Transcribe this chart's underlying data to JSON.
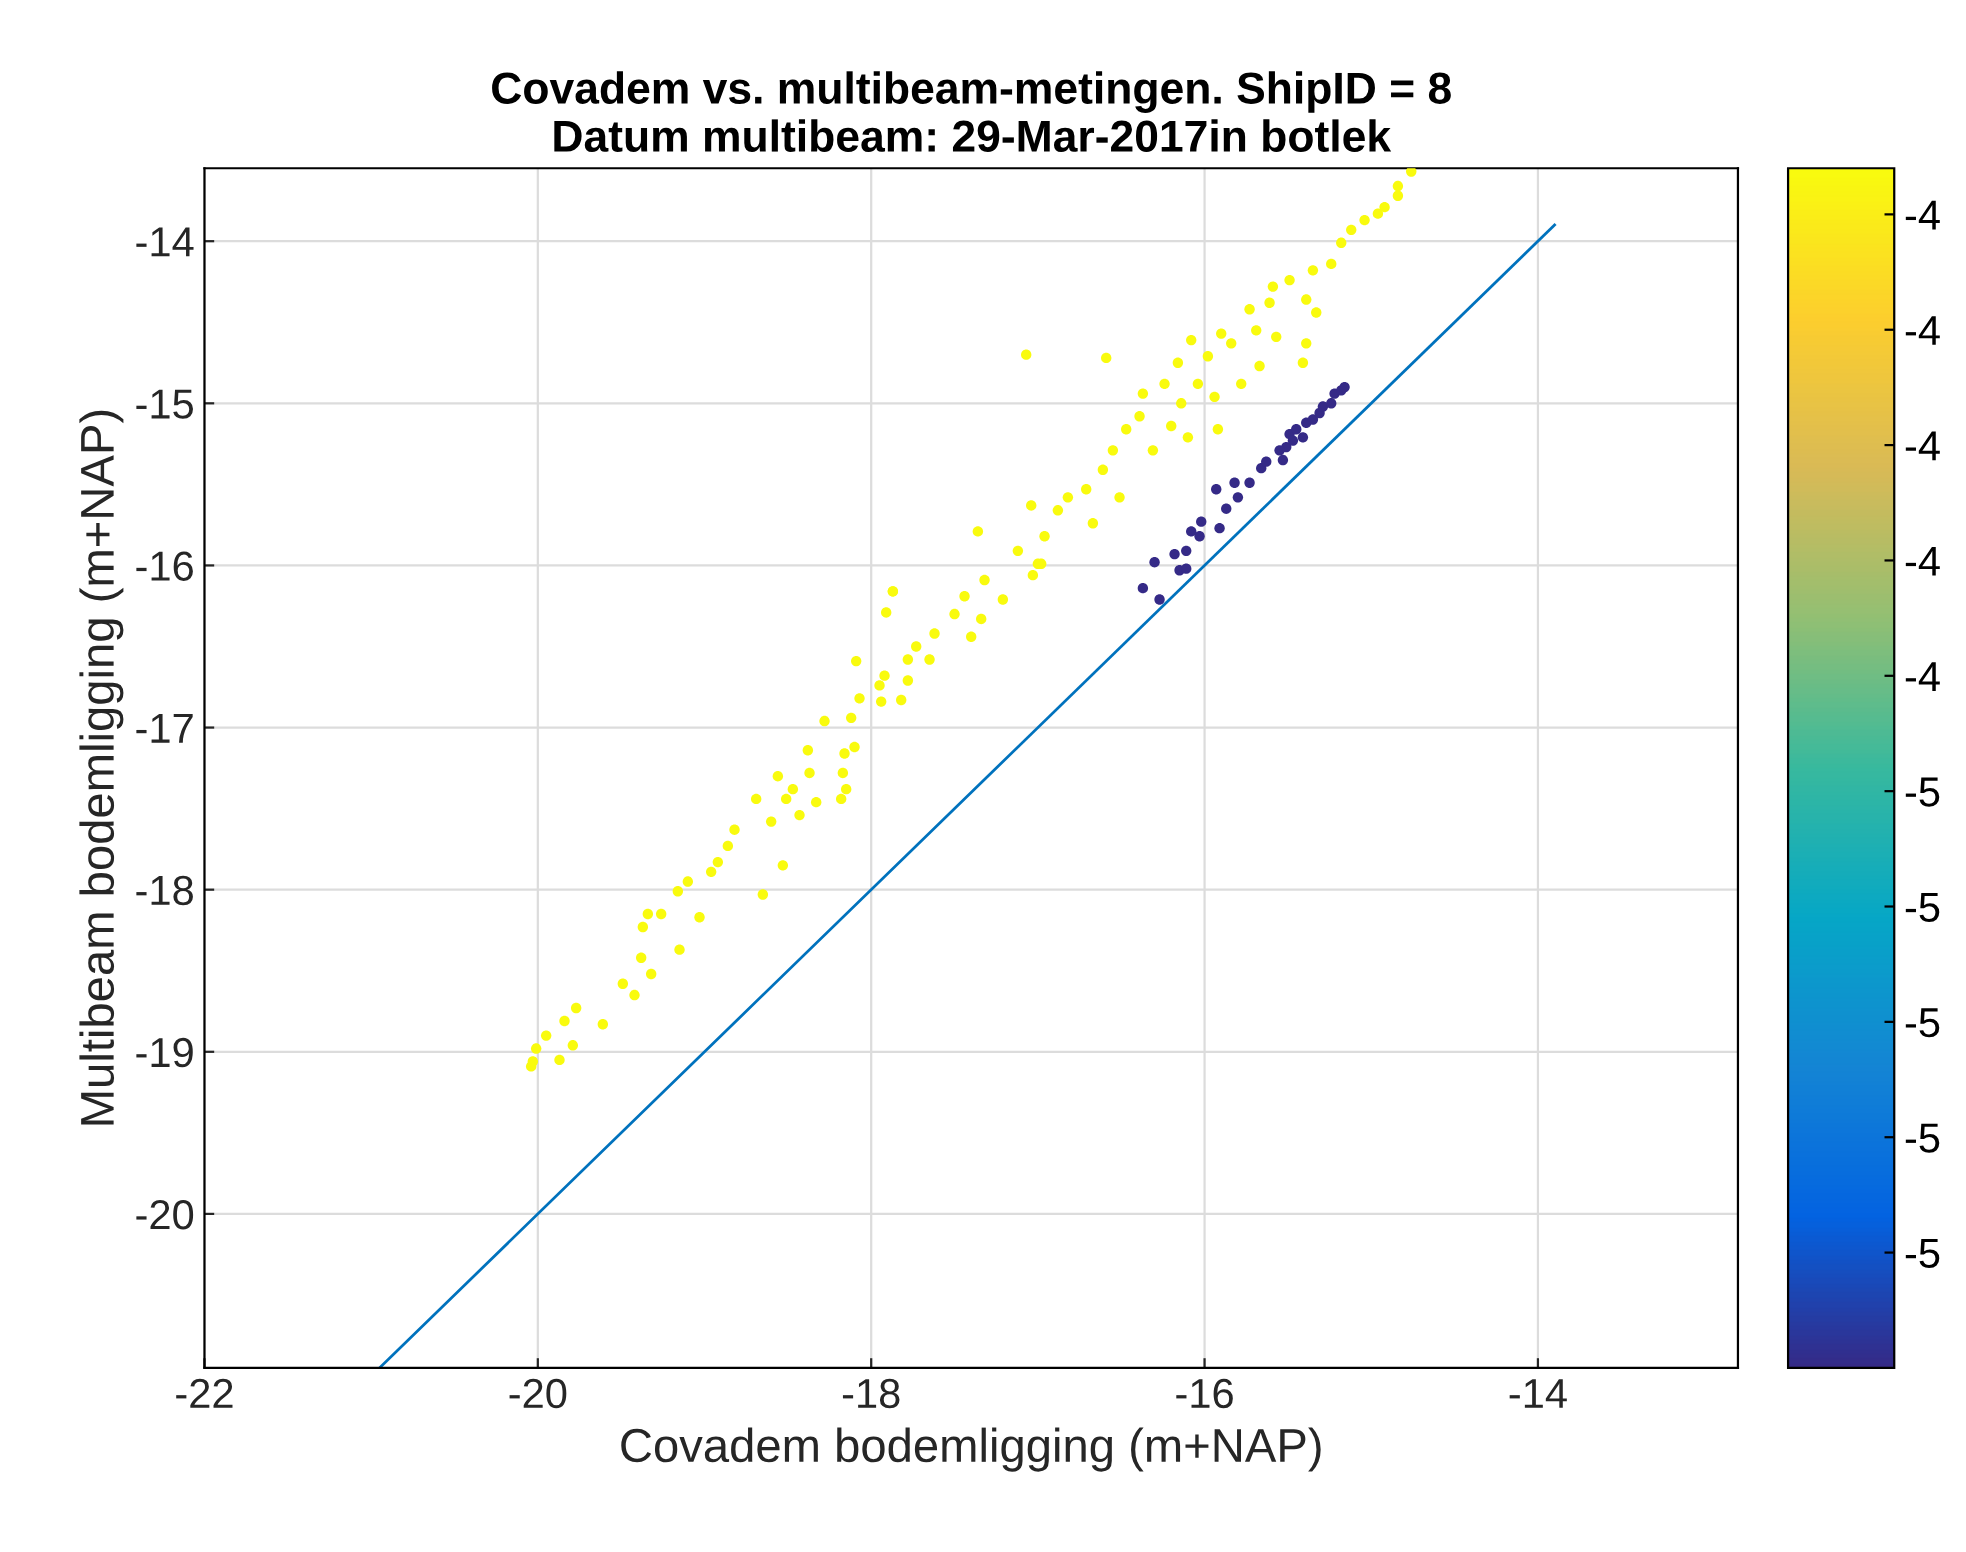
{
  "chart_data": {
    "type": "scatter",
    "title": "Covadem vs. multibeam-metingen. ShipID = 8\nDatum multibeam: 29-Mar-2017in botlek",
    "xlabel": "Covadem bodemligging (m+NAP)",
    "ylabel": "Multibeam bodemligging (m+NAP)",
    "xlim": [
      -22,
      -12.8
    ],
    "xticks": [
      -22,
      -20,
      -18,
      -16,
      -14
    ],
    "ylim": [
      -20.95,
      -13.55
    ],
    "yticks": [
      -20,
      -19,
      -18,
      -17,
      -16,
      -15,
      -14
    ],
    "clim": [
      -5.0,
      -3.96
    ],
    "cticks": [
      {
        "value": -4.0,
        "label": "-4"
      },
      {
        "value": -4.1,
        "label": "-4"
      },
      {
        "value": -4.2,
        "label": "-4"
      },
      {
        "value": -4.3,
        "label": "-4"
      },
      {
        "value": -4.4,
        "label": "-4"
      },
      {
        "value": -4.5,
        "label": "-5"
      },
      {
        "value": -4.6,
        "label": "-5"
      },
      {
        "value": -4.7,
        "label": "-5"
      },
      {
        "value": -4.8,
        "label": "-5"
      },
      {
        "value": -4.9,
        "label": "-5"
      }
    ],
    "grid": true,
    "marker": "circle",
    "series": [
      {
        "x": [
          -20.04,
          -20.03,
          -20.01,
          -19.95,
          -19.87,
          -19.84,
          -19.79,
          -19.77,
          -19.61,
          -19.49,
          -19.42,
          -19.38,
          -19.32,
          -19.37,
          -19.34,
          -19.26,
          -19.15,
          -19.16,
          -19.1,
          -19.03,
          -18.96,
          -18.92,
          -18.86,
          -18.82,
          -18.65,
          -18.69,
          -18.6,
          -18.53,
          -18.56,
          -18.51,
          -18.43,
          -18.47,
          -18.38,
          -18.37,
          -18.33,
          -18.28,
          -18.18,
          -18.17,
          -18.15,
          -18.16,
          -18.12,
          -18.09,
          -18.07,
          -18.1,
          -17.95,
          -17.94,
          -17.92,
          -17.91,
          -17.87,
          -17.82,
          -17.78,
          -17.78,
          -17.73,
          -17.65,
          -17.62,
          -17.5,
          -17.44,
          -17.4,
          -17.34,
          -17.32,
          -17.21,
          -17.03,
          -16.98,
          -17.36,
          -17.04,
          -17.12,
          -17.0,
          -16.96,
          -16.88,
          -16.82,
          -16.71,
          -16.67,
          -16.61,
          -16.55,
          -16.51,
          -16.47,
          -16.39,
          -16.37,
          -16.31,
          -16.24,
          -16.2,
          -16.16,
          -16.14,
          -16.1,
          -16.08,
          -16.04,
          -15.98,
          -15.94,
          -15.92,
          -15.9,
          -15.84,
          -15.78,
          -15.73,
          -15.69,
          -15.67,
          -15.61,
          -15.59,
          -15.57,
          -15.49,
          -15.41,
          -15.39,
          -15.39,
          -15.35,
          -15.33,
          -15.24,
          -15.18,
          -15.12,
          -15.04,
          -14.96,
          -14.92,
          -14.84,
          -14.84,
          -14.76,
          -17.07,
          -16.59,
          -17.87
        ],
        "values": [
          -19.09,
          -19.06,
          -18.98,
          -18.9,
          -19.05,
          -18.81,
          -18.96,
          -18.73,
          -18.83,
          -18.58,
          -18.65,
          -18.42,
          -18.52,
          -18.23,
          -18.15,
          -18.15,
          -18.37,
          -18.01,
          -17.95,
          -18.17,
          -17.89,
          -17.83,
          -17.73,
          -17.63,
          -18.03,
          -17.44,
          -17.58,
          -17.85,
          -17.3,
          -17.44,
          -17.54,
          -17.38,
          -17.14,
          -17.28,
          -17.46,
          -16.96,
          -17.44,
          -17.28,
          -17.38,
          -17.16,
          -16.94,
          -16.59,
          -16.82,
          -17.12,
          -16.74,
          -16.84,
          -16.68,
          -16.29,
          -16.16,
          -16.83,
          -16.71,
          -16.58,
          -16.5,
          -16.58,
          -16.42,
          -16.3,
          -16.19,
          -16.44,
          -16.33,
          -16.09,
          -16.21,
          -16.06,
          -15.99,
          -15.79,
          -15.63,
          -15.91,
          -15.99,
          -15.82,
          -15.66,
          -15.58,
          -15.53,
          -15.74,
          -15.41,
          -15.29,
          -15.58,
          -15.16,
          -15.08,
          -14.94,
          -15.29,
          -14.88,
          -15.14,
          -14.75,
          -15.0,
          -15.21,
          -14.61,
          -14.88,
          -14.71,
          -14.96,
          -15.16,
          -14.57,
          -14.63,
          -14.88,
          -14.42,
          -14.55,
          -14.77,
          -14.38,
          -14.28,
          -14.59,
          -14.24,
          -14.75,
          -14.63,
          -14.36,
          -14.18,
          -14.44,
          -14.14,
          -14.01,
          -13.93,
          -13.87,
          -13.83,
          -13.79,
          -13.72,
          -13.66,
          -13.57,
          -14.7,
          -14.72,
          -16.16
        ],
        "cvalues": [
          -3.96,
          -3.96,
          -3.96,
          -3.96,
          -3.96,
          -3.96,
          -3.96,
          -3.96,
          -3.96,
          -3.96,
          -3.96,
          -3.96,
          -3.96,
          -3.96,
          -3.96,
          -3.96,
          -3.96,
          -3.96,
          -3.96,
          -3.96,
          -3.96,
          -3.96,
          -3.96,
          -3.96,
          -3.96,
          -3.96,
          -3.96,
          -3.96,
          -3.96,
          -3.96,
          -3.96,
          -3.96,
          -3.96,
          -3.96,
          -3.96,
          -3.96,
          -3.96,
          -3.96,
          -3.96,
          -3.96,
          -3.96,
          -3.96,
          -3.96,
          -3.96,
          -3.96,
          -3.96,
          -3.96,
          -3.96,
          -3.96,
          -3.96,
          -3.96,
          -3.96,
          -3.96,
          -3.96,
          -3.96,
          -3.96,
          -3.96,
          -3.96,
          -3.96,
          -3.96,
          -3.96,
          -3.96,
          -3.96,
          -3.96,
          -3.96,
          -3.96,
          -3.96,
          -3.96,
          -3.96,
          -3.96,
          -3.96,
          -3.96,
          -3.96,
          -3.96,
          -3.96,
          -3.96,
          -3.96,
          -3.96,
          -3.96,
          -3.96,
          -3.96,
          -3.96,
          -3.96,
          -3.96,
          -3.96,
          -3.96,
          -3.96,
          -3.96,
          -3.96,
          -3.96,
          -3.96,
          -3.96,
          -3.96,
          -3.96,
          -3.96,
          -3.96,
          -3.96,
          -3.96,
          -3.96,
          -3.96,
          -3.96,
          -3.96,
          -3.96,
          -3.96,
          -3.96,
          -3.96,
          -3.96,
          -3.96,
          -3.96,
          -3.96,
          -3.96,
          -3.96,
          -3.96,
          -3.96,
          -3.96,
          -3.96
        ]
      },
      {
        "x": [
          -16.37,
          -16.27,
          -16.3,
          -16.15,
          -16.11,
          -16.18,
          -16.11,
          -16.08,
          -16.02,
          -16.03,
          -15.91,
          -15.93,
          -15.87,
          -15.82,
          -15.8,
          -15.73,
          -15.66,
          -15.63,
          -15.53,
          -15.51,
          -15.49,
          -15.45,
          -15.41,
          -15.39,
          -15.35,
          -15.31,
          -15.29,
          -15.24,
          -15.22,
          -15.18,
          -15.16,
          -15.55,
          -15.47
        ],
        "values": [
          -16.14,
          -16.21,
          -15.98,
          -16.03,
          -16.02,
          -15.93,
          -15.91,
          -15.79,
          -15.73,
          -15.82,
          -15.77,
          -15.53,
          -15.65,
          -15.49,
          -15.58,
          -15.49,
          -15.4,
          -15.36,
          -15.35,
          -15.27,
          -15.19,
          -15.16,
          -15.21,
          -15.12,
          -15.1,
          -15.06,
          -15.02,
          -15.0,
          -14.94,
          -14.92,
          -14.9,
          -15.29,
          -15.23
        ],
        "cvalues": [
          -5.0,
          -5.0,
          -5.0,
          -5.0,
          -5.0,
          -5.0,
          -5.0,
          -5.0,
          -5.0,
          -5.0,
          -5.0,
          -5.0,
          -5.0,
          -5.0,
          -5.0,
          -5.0,
          -5.0,
          -5.0,
          -5.0,
          -5.0,
          -5.0,
          -5.0,
          -5.0,
          -5.0,
          -5.0,
          -5.0,
          -5.0,
          -5.0,
          -5.0,
          -5.0,
          -5.0,
          -5.0,
          -5.0
        ]
      },
      {
        "type": "line",
        "marker": "none",
        "color": "#0072bd",
        "x": [
          -20.95,
          -13.9
        ],
        "values": [
          -20.95,
          -13.9
        ]
      }
    ]
  }
}
